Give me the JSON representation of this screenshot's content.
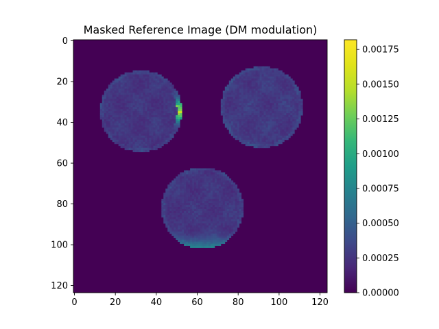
{
  "chart_data": {
    "type": "heatmap",
    "title": "Masked Reference Image (DM modulation)",
    "xlabel": "",
    "ylabel": "",
    "image_size": [
      124,
      124
    ],
    "xlim": [
      -0.5,
      123.5
    ],
    "ylim": [
      123.5,
      -0.5
    ],
    "x_ticks": [
      0,
      20,
      40,
      60,
      80,
      100,
      120
    ],
    "y_ticks": [
      0,
      20,
      40,
      60,
      80,
      100,
      120
    ],
    "x_tick_labels": [
      "0",
      "20",
      "40",
      "60",
      "80",
      "100",
      "120"
    ],
    "y_tick_labels": [
      "0",
      "20",
      "40",
      "60",
      "80",
      "100",
      "120"
    ],
    "colormap": "viridis",
    "colorbar": {
      "vmin": 0.0,
      "vmax": 0.00182,
      "ticks": [
        0.0,
        0.00025,
        0.0005,
        0.00075,
        0.001,
        0.00125,
        0.0015,
        0.00175
      ],
      "tick_labels": [
        "0.00000",
        "0.00025",
        "0.00050",
        "0.00075",
        "0.00100",
        "0.00125",
        "0.00150",
        "0.00175"
      ]
    },
    "pupils": [
      {
        "cx": 32.5,
        "cy": 34.5,
        "r": 20.0,
        "base_level": 0.00028,
        "bright_edge": "right",
        "edge_peak": 0.00165
      },
      {
        "cx": 91.5,
        "cy": 32.5,
        "r": 20.0,
        "base_level": 0.0003,
        "bright_edge": "none",
        "edge_peak": 0.0003
      },
      {
        "cx": 62.5,
        "cy": 82.0,
        "r": 20.0,
        "base_level": 0.00028,
        "bright_edge": "bottom",
        "edge_peak": 0.0009
      }
    ],
    "background_level": 0.0,
    "grid": false
  }
}
